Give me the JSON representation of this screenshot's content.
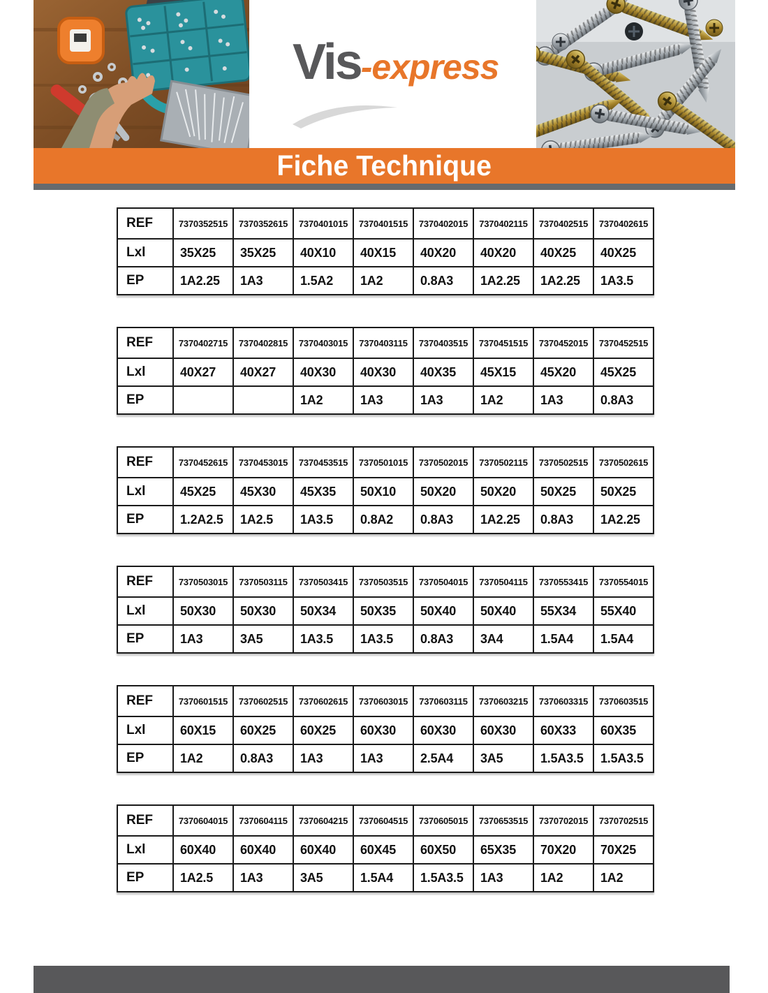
{
  "logo": {
    "part1": "Vis",
    "part2": "-express"
  },
  "banner": {
    "title": "Fiche Technique"
  },
  "row_labels": {
    "ref": "REF",
    "lxl": "Lxl",
    "ep": "EP"
  },
  "colors": {
    "accent_orange": "#E8762A",
    "logo_gray": "#58585A",
    "logo_orange": "#EE7C1E",
    "strip_gray": "#666A6D",
    "footer_gray": "#58585A",
    "table_border": "#1A1A1A"
  },
  "header_images": {
    "left": "workbench-with-screw-assortment-photo",
    "right": "pile-of-screws-photo"
  },
  "tables": [
    {
      "ref": [
        "7370352515",
        "7370352615",
        "7370401015",
        "7370401515",
        "7370402015",
        "7370402115",
        "7370402515",
        "7370402615"
      ],
      "lxl": [
        "35X25",
        "35X25",
        "40X10",
        "40X15",
        "40X20",
        "40X20",
        "40X25",
        "40X25"
      ],
      "ep": [
        "1A2.25",
        "1A3",
        "1.5A2",
        "1A2",
        "0.8A3",
        "1A2.25",
        "1A2.25",
        "1A3.5"
      ]
    },
    {
      "ref": [
        "7370402715",
        "7370402815",
        "7370403015",
        "7370403115",
        "7370403515",
        "7370451515",
        "7370452015",
        "7370452515"
      ],
      "lxl": [
        "40X27",
        "40X27",
        "40X30",
        "40X30",
        "40X35",
        "45X15",
        "45X20",
        "45X25"
      ],
      "ep": [
        "",
        "",
        "1A2",
        "1A3",
        "1A3",
        "1A2",
        "1A3",
        "0.8A3"
      ]
    },
    {
      "ref": [
        "7370452615",
        "7370453015",
        "7370453515",
        "7370501015",
        "7370502015",
        "7370502115",
        "7370502515",
        "7370502615"
      ],
      "lxl": [
        "45X25",
        "45X30",
        "45X35",
        "50X10",
        "50X20",
        "50X20",
        "50X25",
        "50X25"
      ],
      "ep": [
        "1.2A2.5",
        "1A2.5",
        "1A3.5",
        "0.8A2",
        "0.8A3",
        "1A2.25",
        "0.8A3",
        "1A2.25"
      ]
    },
    {
      "ref": [
        "7370503015",
        "7370503115",
        "7370503415",
        "7370503515",
        "7370504015",
        "7370504115",
        "7370553415",
        "7370554015"
      ],
      "lxl": [
        "50X30",
        "50X30",
        "50X34",
        "50X35",
        "50X40",
        "50X40",
        "55X34",
        "55X40"
      ],
      "ep": [
        "1A3",
        "3A5",
        "1A3.5",
        "1A3.5",
        "0.8A3",
        "3A4",
        "1.5A4",
        "1.5A4"
      ]
    },
    {
      "ref": [
        "7370601515",
        "7370602515",
        "7370602615",
        "7370603015",
        "7370603115",
        "7370603215",
        "7370603315",
        "7370603515"
      ],
      "lxl": [
        "60X15",
        "60X25",
        "60X25",
        "60X30",
        "60X30",
        "60X30",
        "60X33",
        "60X35"
      ],
      "ep": [
        "1A2",
        "0.8A3",
        "1A3",
        "1A3",
        "2.5A4",
        "3A5",
        "1.5A3.5",
        "1.5A3.5"
      ]
    },
    {
      "ref": [
        "7370604015",
        "7370604115",
        "7370604215",
        "7370604515",
        "7370605015",
        "7370653515",
        "7370702015",
        "7370702515"
      ],
      "lxl": [
        "60X40",
        "60X40",
        "60X40",
        "60X45",
        "60X50",
        "65X35",
        "70X20",
        "70X25"
      ],
      "ep": [
        "1A2.5",
        "1A3",
        "3A5",
        "1.5A4",
        "1.5A3.5",
        "1A3",
        "1A2",
        "1A2"
      ]
    }
  ]
}
